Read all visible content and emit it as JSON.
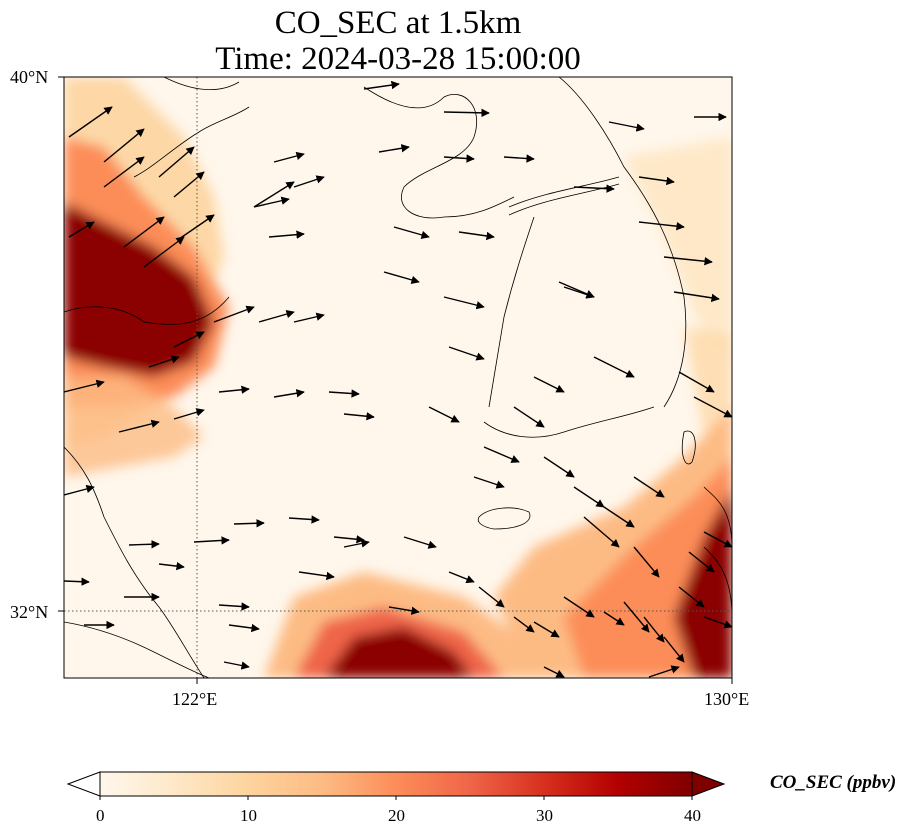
{
  "title": {
    "line1": "CO_SEC at 1.5km",
    "line2": "Time: 2024-03-28 15:00:00"
  },
  "map": {
    "lat_ticks": [
      "40°N",
      "32°N"
    ],
    "lon_ticks": [
      "122°E",
      "130°E"
    ],
    "extent": {
      "lon": [
        120,
        130
      ],
      "lat": [
        31,
        40
      ]
    },
    "gridlines": {
      "lons": [
        122
      ],
      "lats": [
        32
      ],
      "style": "dotted"
    },
    "field": "CO_SEC",
    "level": "1.5km",
    "overlay": "wind vectors (black arrows, predominantly westerly/north-westerly)"
  },
  "colorbar": {
    "label": "CO_SEC (ppbv)",
    "ticks": [
      "0",
      "10",
      "20",
      "30",
      "40"
    ],
    "min": 0,
    "max": 40,
    "extend": "both",
    "colormap": [
      "#fff7ec",
      "#fee8c8",
      "#fdd49e",
      "#fdbb84",
      "#fc8d59",
      "#ef6548",
      "#d7301f",
      "#b30000",
      "#7f0000"
    ]
  }
}
